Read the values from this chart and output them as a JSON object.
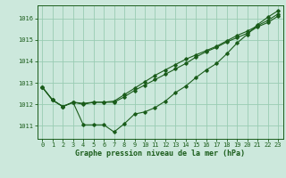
{
  "bg_color": "#cce8dc",
  "grid_color": "#99ccb3",
  "line_color": "#1a5c1a",
  "marker_color": "#1a5c1a",
  "xlabel": "Graphe pression niveau de la mer (hPa)",
  "xlim": [
    -0.5,
    23.5
  ],
  "ylim": [
    1010.4,
    1016.6
  ],
  "yticks": [
    1011,
    1012,
    1013,
    1014,
    1015,
    1016
  ],
  "xticks": [
    0,
    1,
    2,
    3,
    4,
    5,
    6,
    7,
    8,
    9,
    10,
    11,
    12,
    13,
    14,
    15,
    16,
    17,
    18,
    19,
    20,
    21,
    22,
    23
  ],
  "series": [
    [
      1012.8,
      1012.2,
      1011.9,
      1012.1,
      1011.05,
      1011.05,
      1011.05,
      1010.72,
      1011.1,
      1011.55,
      1011.65,
      1011.85,
      1012.15,
      1012.55,
      1012.85,
      1013.25,
      1013.6,
      1013.9,
      1014.35,
      1014.85,
      1015.25,
      1015.7,
      1016.05,
      1016.35
    ],
    [
      1012.8,
      1012.2,
      1011.9,
      1012.1,
      1012.05,
      1012.1,
      1012.1,
      1012.15,
      1012.45,
      1012.75,
      1013.05,
      1013.35,
      1013.6,
      1013.85,
      1014.1,
      1014.3,
      1014.5,
      1014.7,
      1014.95,
      1015.2,
      1015.4,
      1015.65,
      1015.9,
      1016.2
    ],
    [
      1012.8,
      1012.2,
      1011.9,
      1012.1,
      1012.0,
      1012.1,
      1012.1,
      1012.1,
      1012.35,
      1012.65,
      1012.9,
      1013.15,
      1013.4,
      1013.65,
      1013.9,
      1014.2,
      1014.45,
      1014.65,
      1014.9,
      1015.1,
      1015.3,
      1015.6,
      1015.8,
      1016.1
    ]
  ]
}
